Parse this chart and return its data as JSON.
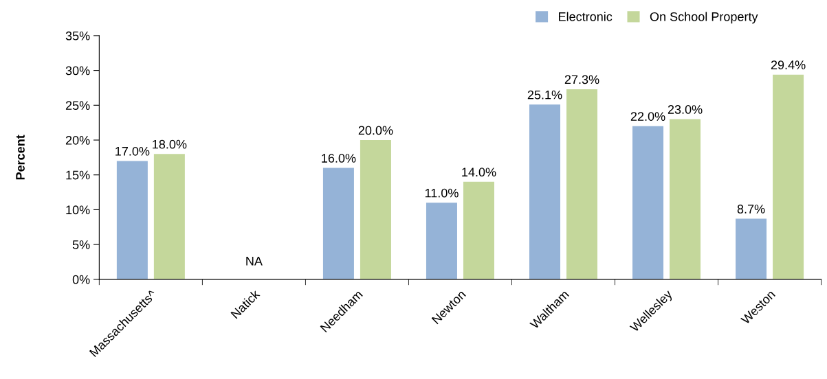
{
  "chart_data": {
    "type": "bar",
    "categories": [
      "Massachusetts^",
      "Natick",
      "Needham",
      "Newton",
      "Waltham",
      "Wellesley",
      "Weston"
    ],
    "series": [
      {
        "name": "Electronic",
        "color": "#95b3d7",
        "values": [
          17.0,
          null,
          16.0,
          11.0,
          25.1,
          22.0,
          8.7
        ],
        "value_labels": [
          "17.0%",
          null,
          "16.0%",
          "11.0%",
          "25.1%",
          "22.0%",
          "8.7%"
        ]
      },
      {
        "name": "On School Property",
        "color": "#c4d79b",
        "values": [
          18.0,
          null,
          20.0,
          14.0,
          27.3,
          23.0,
          29.4
        ],
        "value_labels": [
          "18.0%",
          null,
          "20.0%",
          "14.0%",
          "27.3%",
          "23.0%",
          "29.4%"
        ]
      }
    ],
    "ylabel": "Percent",
    "ylim": [
      0,
      35
    ],
    "yticks": [
      {
        "value": 0,
        "label": "0%"
      },
      {
        "value": 5,
        "label": "5%"
      },
      {
        "value": 10,
        "label": "10%"
      },
      {
        "value": 15,
        "label": "15%"
      },
      {
        "value": 20,
        "label": "20%"
      },
      {
        "value": 25,
        "label": "25%"
      },
      {
        "value": 30,
        "label": "30%"
      },
      {
        "value": 35,
        "label": "35%"
      }
    ],
    "annotations": [
      "NA"
    ],
    "grid": false,
    "legend": "top right"
  }
}
